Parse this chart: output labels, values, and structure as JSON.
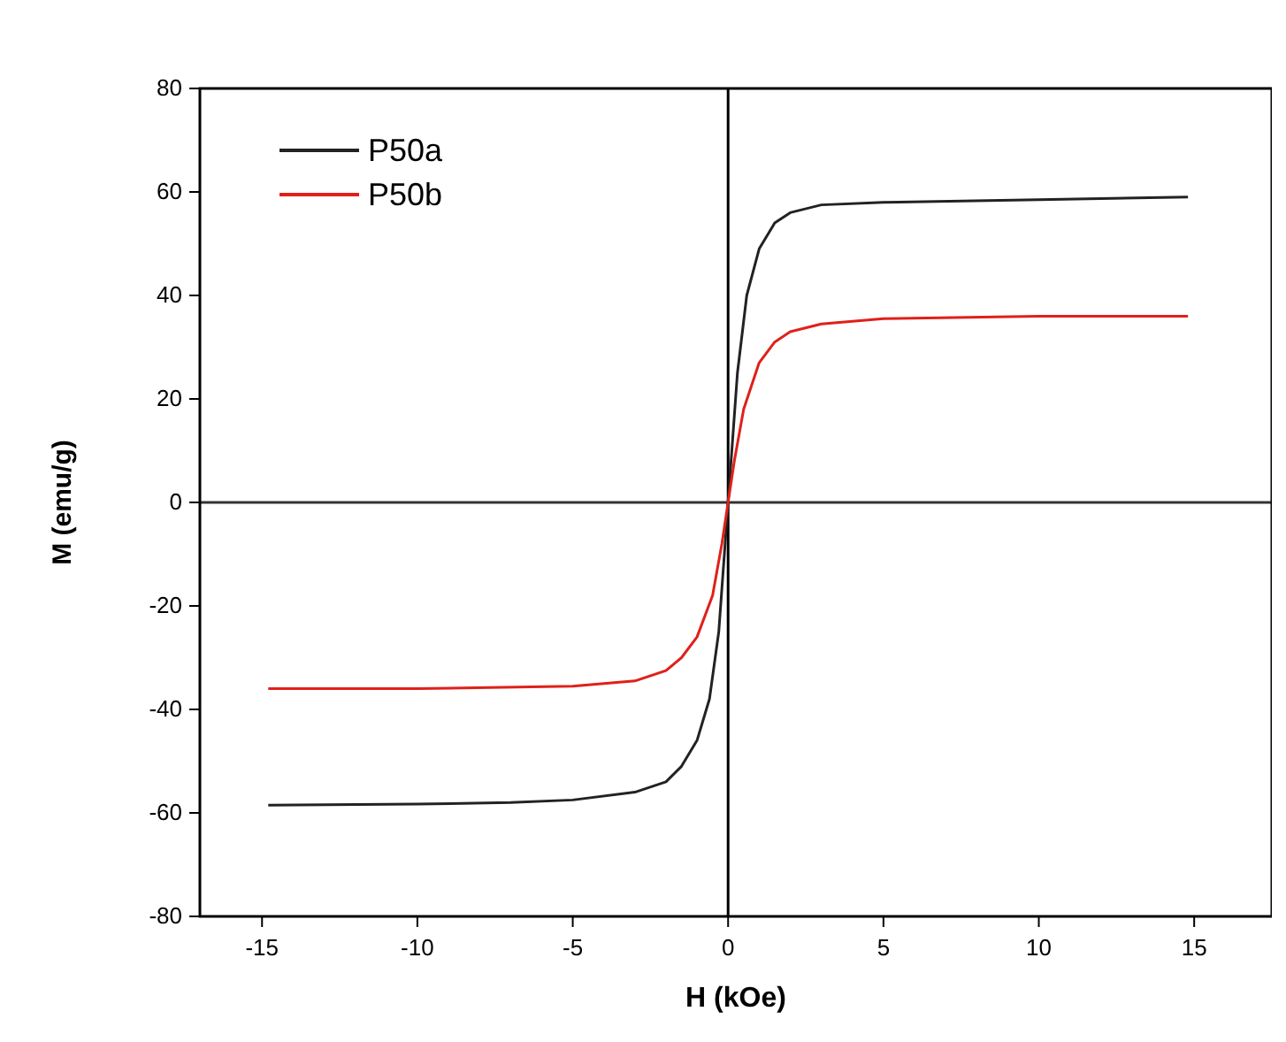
{
  "chart_data": {
    "type": "line",
    "xlabel": "H (kOe)",
    "ylabel": "M (emu/g)",
    "xlim": [
      -17,
      17.5
    ],
    "ylim": [
      -80,
      80
    ],
    "xticks": [
      -15,
      -10,
      -5,
      0,
      5,
      10,
      15
    ],
    "yticks": [
      -80,
      -60,
      -40,
      -20,
      0,
      20,
      40,
      60,
      80
    ],
    "grid": false,
    "legend": "top left",
    "marker": "none",
    "line_style": "solid",
    "ref_lines": [
      {
        "axis": "x",
        "value": 0,
        "color": "#000000"
      },
      {
        "axis": "y",
        "value": 0,
        "color": "#333333"
      }
    ],
    "series": [
      {
        "name": "P50a",
        "color": "#222222",
        "x": [
          -14.8,
          -10,
          -7,
          -5,
          -3,
          -2,
          -1.5,
          -1,
          -0.6,
          -0.3,
          0,
          0.3,
          0.6,
          1,
          1.5,
          2,
          3,
          5,
          10,
          14.8
        ],
        "values": [
          -58.5,
          -58.3,
          -58,
          -57.5,
          -56,
          -54,
          -51,
          -46,
          -38,
          -25,
          0,
          25,
          40,
          49,
          54,
          56,
          57.5,
          58,
          58.5,
          59
        ]
      },
      {
        "name": "P50b",
        "color": "#e0201a",
        "x": [
          -14.8,
          -10,
          -5,
          -3,
          -2,
          -1.5,
          -1,
          -0.5,
          -0.2,
          0,
          0.2,
          0.5,
          1,
          1.5,
          2,
          3,
          5,
          10,
          14.8
        ],
        "values": [
          -36,
          -36,
          -35.5,
          -34.5,
          -32.5,
          -30,
          -26,
          -18,
          -8,
          0,
          8,
          18,
          27,
          31,
          33,
          34.5,
          35.5,
          36,
          36
        ]
      }
    ]
  }
}
